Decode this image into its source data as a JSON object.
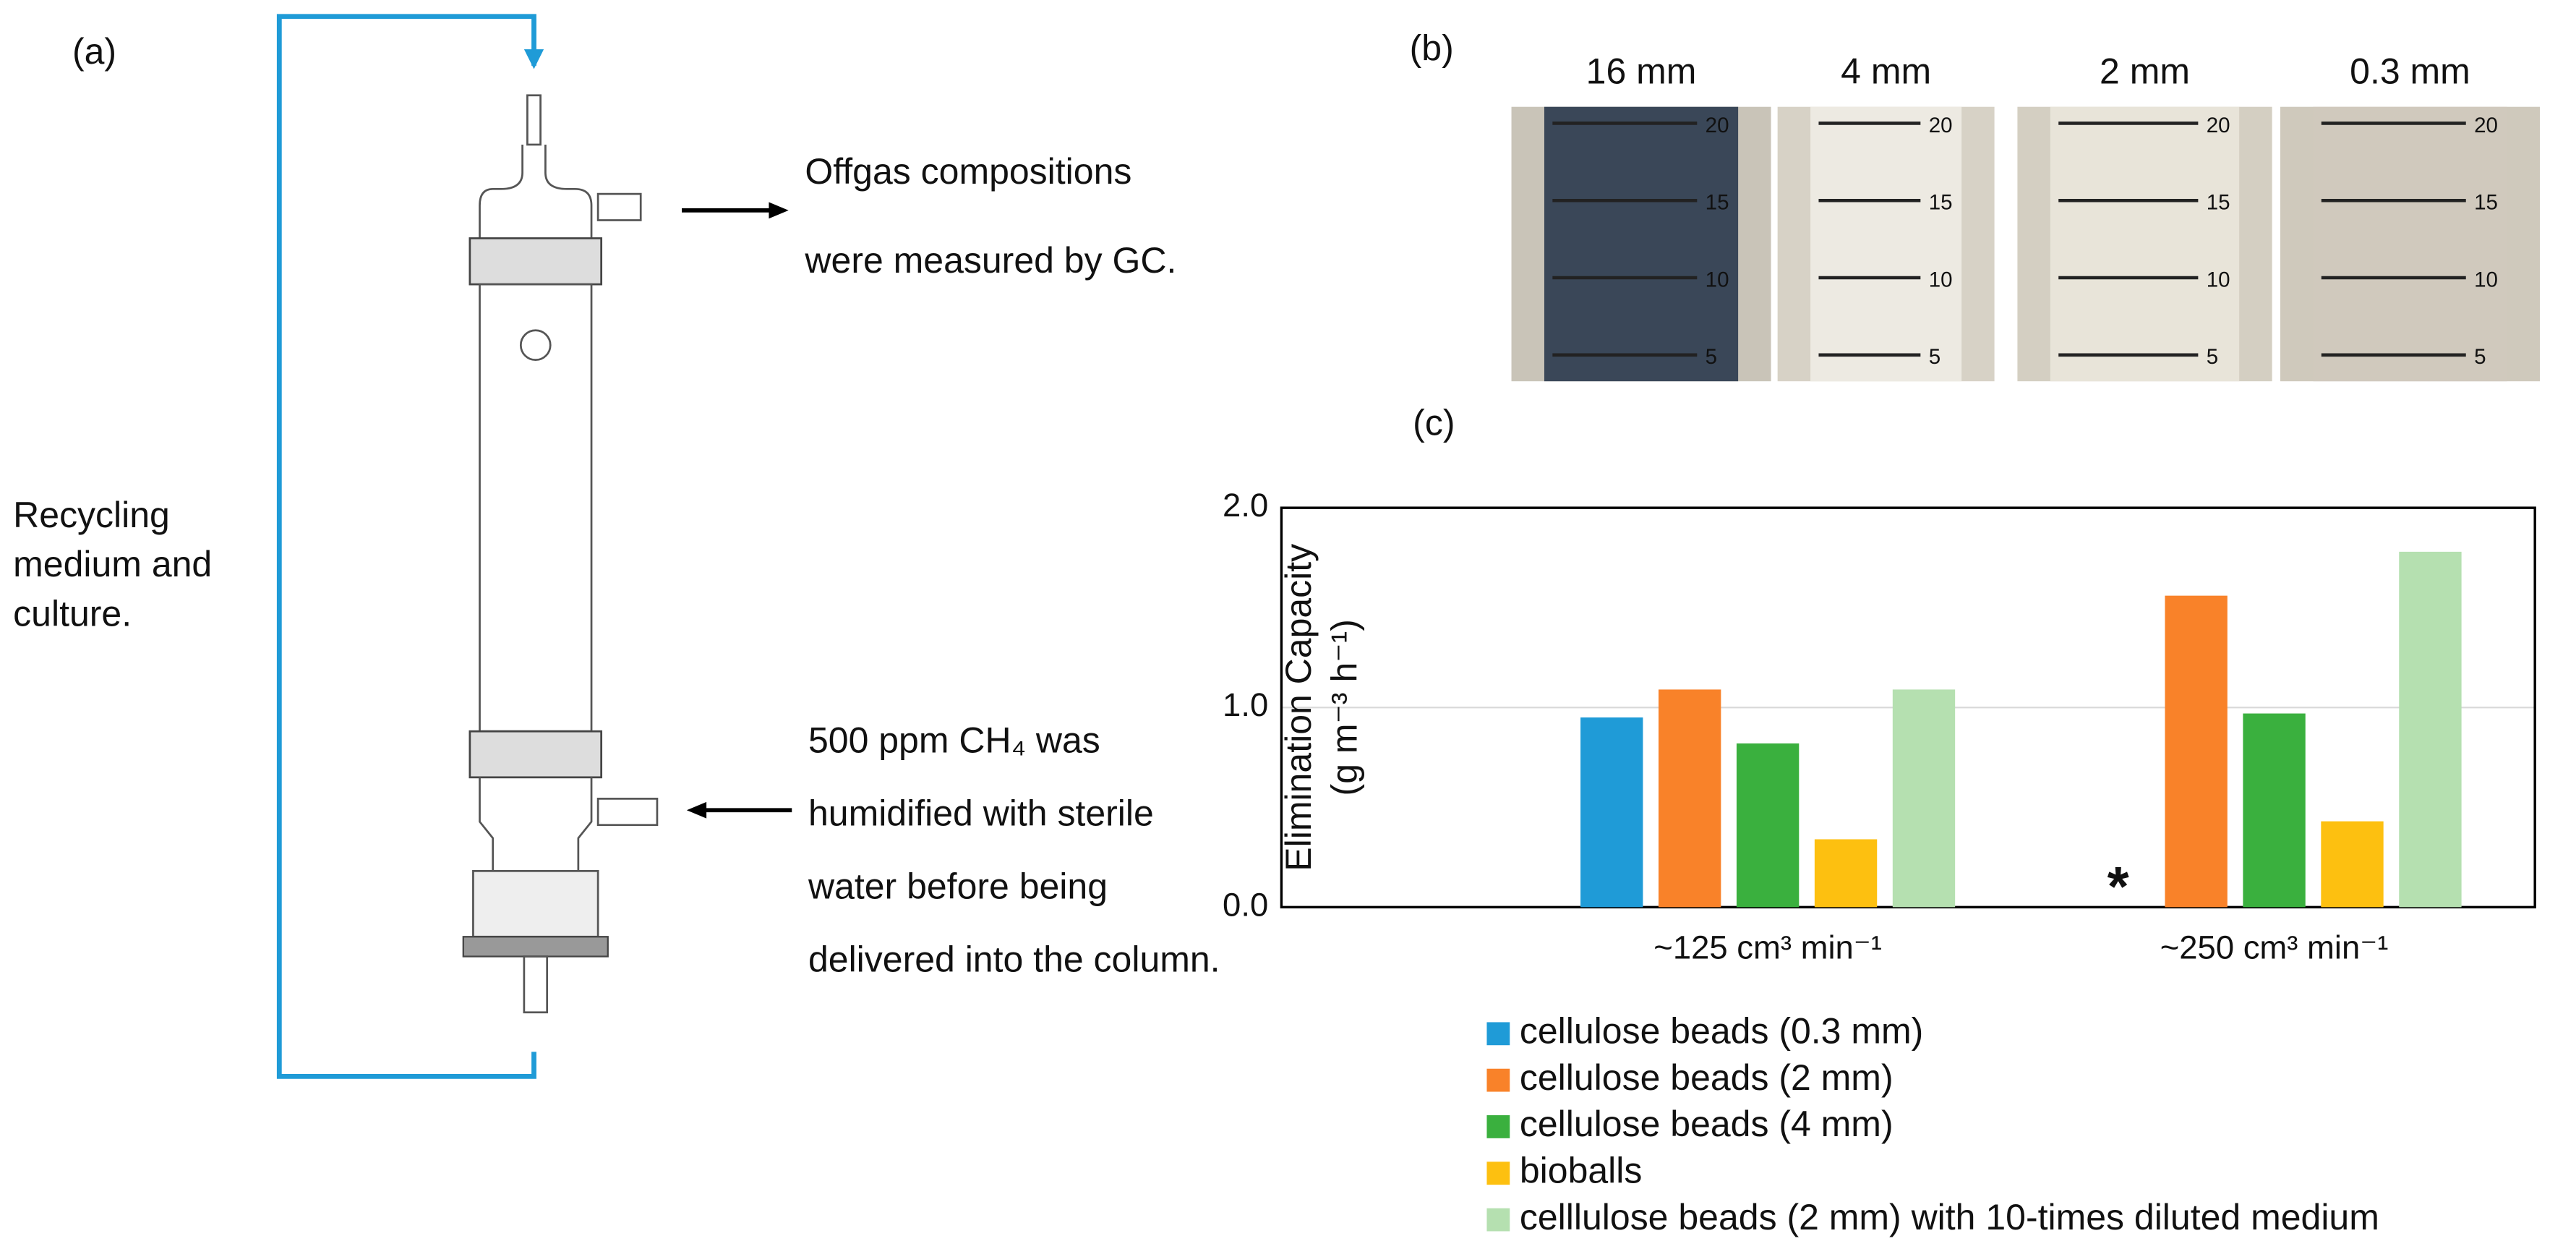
{
  "panel_a": {
    "label": "(a)",
    "recycling_note": [
      "Recycling",
      "medium and",
      "culture."
    ],
    "offgas_note": [
      "Offgas compositions",
      "were measured by GC."
    ],
    "inlet_note": [
      "500 ppm CH₄ was",
      "humidified with sterile",
      "water before being",
      "delivered into the column."
    ]
  },
  "panel_b": {
    "label": "(b)",
    "photos": [
      "16 mm",
      "4 mm",
      "2 mm",
      "0.3 mm"
    ],
    "scale_marks": [
      "20",
      "15",
      "10",
      "5"
    ]
  },
  "panel_c": {
    "label": "(c)"
  },
  "chart_data": {
    "type": "bar",
    "ylabel": [
      "Elimination Capacity",
      "(g m⁻³ h⁻¹)"
    ],
    "categories": [
      "~125 cm³ min⁻¹",
      "~250 cm³ min⁻¹"
    ],
    "series": [
      {
        "name": "cellulose beads (0.3 mm)",
        "color": "#1f9bd7",
        "values": [
          0.95,
          null
        ]
      },
      {
        "name": "cellulose beads (2 mm)",
        "color": "#f98229",
        "values": [
          1.09,
          1.56
        ]
      },
      {
        "name": "cellulose beads (4 mm)",
        "color": "#3ab03e",
        "values": [
          0.82,
          0.97
        ]
      },
      {
        "name": "bioballs",
        "color": "#fdc010",
        "values": [
          0.34,
          0.43
        ]
      },
      {
        "name": "celllulose beads (2 mm) with 10-times diluted medium",
        "color": "#b5e0b0",
        "values": [
          1.09,
          1.78
        ]
      }
    ],
    "annotations": [
      {
        "text": "*"
      }
    ],
    "ylim": [
      0,
      2
    ],
    "yticks": [
      {
        "value": 0,
        "label": "0.0"
      },
      {
        "value": 1,
        "label": "1.0"
      },
      {
        "value": 2,
        "label": "2.0"
      }
    ],
    "grid": true
  }
}
